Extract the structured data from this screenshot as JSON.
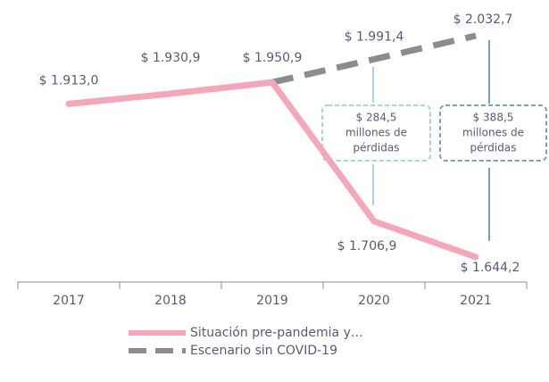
{
  "chart_data": {
    "type": "line",
    "categories": [
      "2017",
      "2018",
      "2019",
      "2020",
      "2021"
    ],
    "series": [
      {
        "name": "Situación pre-pandemia y…",
        "color": "#f4a7b9",
        "style": "solid",
        "values": [
          1913.0,
          1930.9,
          1950.9,
          1706.9,
          1644.2
        ],
        "value_labels": [
          "$ 1.913,0",
          "$ 1.930,9",
          "$ 1.950,9",
          "$ 1.706,9",
          "$ 1.644,2"
        ]
      },
      {
        "name": "Escenario sin COVID-19",
        "color": "#8c8c8c",
        "style": "dashed",
        "values": [
          null,
          null,
          1950.9,
          1991.4,
          2032.7
        ],
        "value_labels": [
          null,
          null,
          null,
          "$ 1.991,4",
          "$ 2.032,7"
        ]
      }
    ],
    "annotations": [
      {
        "lines": [
          "$ 284,5",
          "millones de",
          "pérdidas"
        ],
        "color": "#a9d3e0"
      },
      {
        "lines": [
          "$ 388,5",
          "millones de",
          "pérdidas"
        ],
        "color": "#7f9fc0"
      }
    ],
    "legend": "bottom"
  }
}
